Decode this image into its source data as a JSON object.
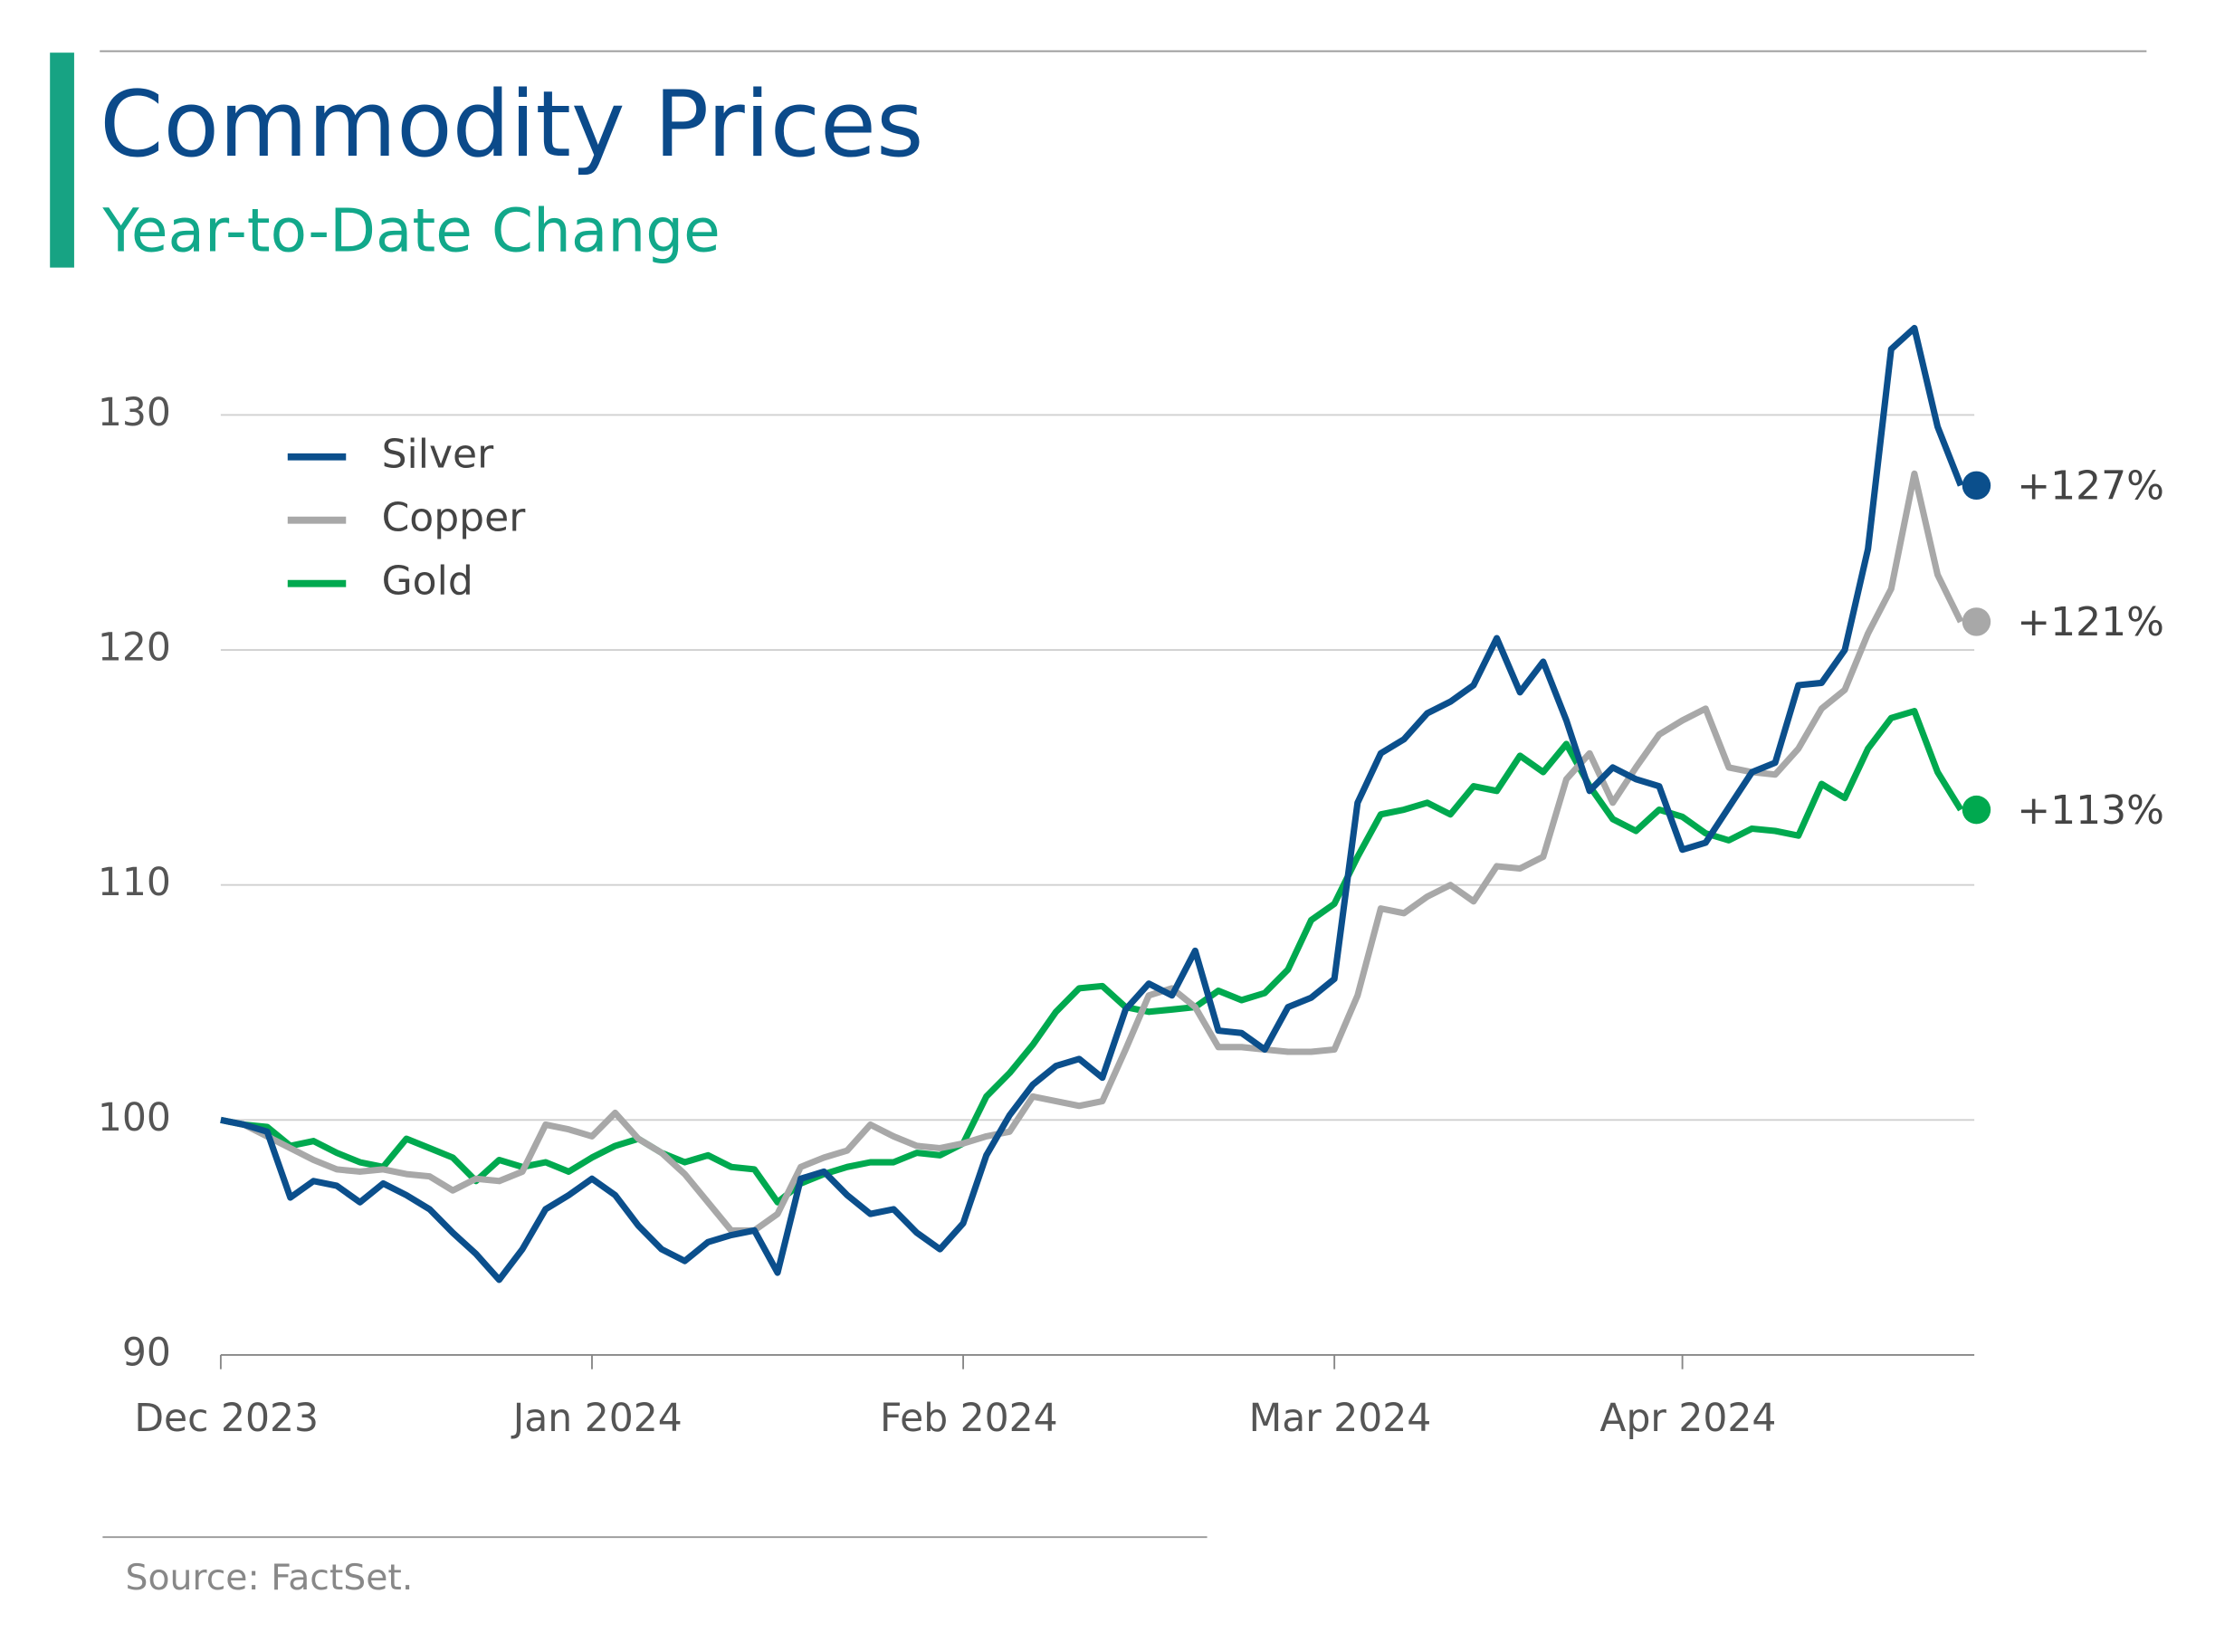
{
  "chart_data": {
    "type": "line",
    "title": "Commodity Prices",
    "subtitle": "Year-to-Date Change",
    "source": "Source: FactSet.",
    "categories": [
      "Dec 2023",
      null,
      null,
      null,
      null,
      null,
      null,
      null,
      null,
      null,
      null,
      null,
      null,
      null,
      null,
      null,
      "Jan 2024",
      null,
      null,
      null,
      null,
      null,
      null,
      null,
      null,
      null,
      null,
      null,
      null,
      null,
      null,
      null,
      "Feb 2024",
      null,
      null,
      null,
      null,
      null,
      null,
      null,
      null,
      null,
      null,
      null,
      null,
      null,
      null,
      null,
      "Mar 2024",
      null,
      null,
      null,
      null,
      null,
      null,
      null,
      null,
      null,
      null,
      null,
      null,
      null,
      null,
      "Apr 2024",
      null,
      null,
      null,
      null,
      null,
      null,
      null,
      null,
      null,
      null,
      null,
      null
    ],
    "series": [
      {
        "name": "Silver",
        "color": "#0b4f8c",
        "end_label": "+127%",
        "values": [
          100,
          99.8,
          99.5,
          96.7,
          97.4,
          97.2,
          96.5,
          97.3,
          96.8,
          96.2,
          95.2,
          94.3,
          93.2,
          94.5,
          96.2,
          96.8,
          97.5,
          96.8,
          95.5,
          94.5,
          94.0,
          94.8,
          95.1,
          95.3,
          93.5,
          97.5,
          97.8,
          96.8,
          96.0,
          96.2,
          95.2,
          94.5,
          95.6,
          98.5,
          100.2,
          101.5,
          102.3,
          102.6,
          101.8,
          104.7,
          105.8,
          105.3,
          107.2,
          103.8,
          103.7,
          103.0,
          104.8,
          105.2,
          106.0,
          113.5,
          115.6,
          116.2,
          117.3,
          117.8,
          118.5,
          120.5,
          118.2,
          119.5,
          117.0,
          114.0,
          115.0,
          114.5,
          114.2,
          111.5,
          111.8,
          113.3,
          114.8,
          115.2,
          118.5,
          118.6,
          120.0,
          124.3,
          132.8,
          133.7,
          129.5,
          127.0
        ]
      },
      {
        "name": "Copper",
        "color": "#a8a8a8",
        "end_label": "+121%",
        "values": [
          100,
          99.8,
          99.3,
          98.8,
          98.3,
          97.9,
          97.8,
          97.9,
          97.7,
          97.6,
          97.0,
          97.5,
          97.4,
          97.8,
          99.8,
          99.6,
          99.3,
          100.3,
          99.2,
          98.6,
          97.7,
          96.5,
          95.3,
          95.3,
          96.0,
          98.0,
          98.4,
          98.7,
          99.8,
          99.3,
          98.9,
          98.8,
          99.0,
          99.3,
          99.5,
          101.0,
          100.8,
          100.6,
          100.8,
          103.0,
          105.3,
          105.6,
          104.8,
          103.1,
          103.1,
          103.0,
          102.9,
          102.9,
          103.0,
          105.3,
          109.0,
          108.8,
          109.5,
          110.0,
          109.3,
          110.8,
          110.7,
          111.2,
          114.5,
          115.6,
          113.5,
          115.0,
          116.4,
          117.0,
          117.5,
          115.0,
          114.8,
          114.7,
          115.8,
          117.5,
          118.3,
          120.7,
          122.6,
          127.5,
          123.2,
          121.2
        ]
      },
      {
        "name": "Gold",
        "color": "#00a94f",
        "end_label": "+113%",
        "values": [
          100,
          99.8,
          99.7,
          98.9,
          99.1,
          98.6,
          98.2,
          98.0,
          99.2,
          98.8,
          98.4,
          97.4,
          98.3,
          98.0,
          98.2,
          97.8,
          98.4,
          98.9,
          99.2,
          98.6,
          98.2,
          98.5,
          98.0,
          97.9,
          96.5,
          97.3,
          97.7,
          98.0,
          98.2,
          98.2,
          98.6,
          98.5,
          99.0,
          101.0,
          102.0,
          103.2,
          104.6,
          105.6,
          105.7,
          104.8,
          104.6,
          104.7,
          104.8,
          105.5,
          105.1,
          105.4,
          106.4,
          108.5,
          109.2,
          111.2,
          113.0,
          113.2,
          113.5,
          113.0,
          114.2,
          114.0,
          115.5,
          114.8,
          116.0,
          114.2,
          112.8,
          112.3,
          113.2,
          112.9,
          112.2,
          111.9,
          112.4,
          112.3,
          112.1,
          114.3,
          113.7,
          115.8,
          117.1,
          117.4,
          114.8,
          113.2
        ]
      }
    ],
    "ylim": [
      90,
      135
    ],
    "yticks": [
      90,
      100,
      110,
      120,
      130
    ],
    "grid": true,
    "legend": "upper left"
  }
}
